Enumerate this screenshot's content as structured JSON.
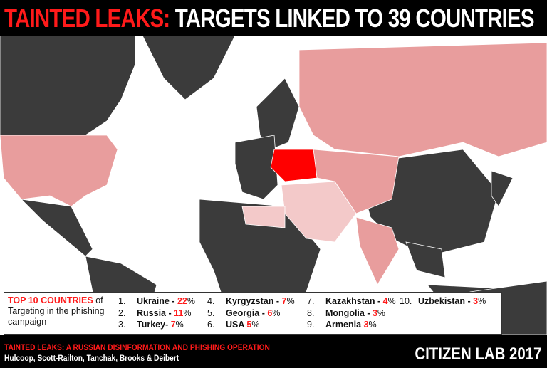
{
  "title": {
    "highlight": "TAINTED LEAKS:",
    "main": "TARGETS LINKED TO 39 COUNTRIES"
  },
  "colors": {
    "accent": "#ff1a1a",
    "land_untargeted": "#3b3b3b",
    "high": "#e89d9d",
    "low": "#f3c9c9",
    "top": "#ff0000"
  },
  "map": {
    "top_country": "Ukraine",
    "regions": [
      {
        "name": "Canada",
        "level": "none"
      },
      {
        "name": "USA",
        "level": "high"
      },
      {
        "name": "Greenland",
        "level": "none"
      },
      {
        "name": "Russia",
        "level": "high"
      },
      {
        "name": "Ukraine",
        "level": "top"
      },
      {
        "name": "Central Asia",
        "level": "high"
      },
      {
        "name": "Middle East",
        "level": "low"
      },
      {
        "name": "China",
        "level": "none"
      },
      {
        "name": "India",
        "level": "high"
      }
    ]
  },
  "legend": {
    "heading_red": "TOP 10 COUNTRIES",
    "heading_rest": " of Targeting in the phishing campaign",
    "items": [
      {
        "rank": "1.",
        "country": "Ukraine - ",
        "pct": "22",
        "suffix": "%"
      },
      {
        "rank": "2.",
        "country": "Russia - ",
        "pct": "11",
        "suffix": "%"
      },
      {
        "rank": "3.",
        "country": "Turkey- ",
        "pct": "7",
        "suffix": "%"
      },
      {
        "rank": "4.",
        "country": "Kyrgyzstan - ",
        "pct": "7",
        "suffix": "%"
      },
      {
        "rank": "5.",
        "country": "Georgia - ",
        "pct": "6",
        "suffix": "%"
      },
      {
        "rank": "6.",
        "country": "USA ",
        "pct": "5",
        "suffix": "%"
      },
      {
        "rank": "7.",
        "country": "Kazakhstan - ",
        "pct": "4",
        "suffix": "%"
      },
      {
        "rank": "8.",
        "country": "Mongolia - ",
        "pct": "3",
        "suffix": "%"
      },
      {
        "rank": "9.",
        "country": "Armenia ",
        "pct": "3",
        "suffix": "%"
      },
      {
        "rank": "10.",
        "country": "Uzbekistan - ",
        "pct": "3",
        "suffix": "%"
      }
    ]
  },
  "footer": {
    "report": "TAINTED LEAKS: A RUSSIAN DISINFORMATION AND PHISHING OPERATION",
    "authors": "Hulcoop, Scott-Railton, Tanchak, Brooks & Deibert",
    "brand": "CITIZEN LAB 2017"
  }
}
